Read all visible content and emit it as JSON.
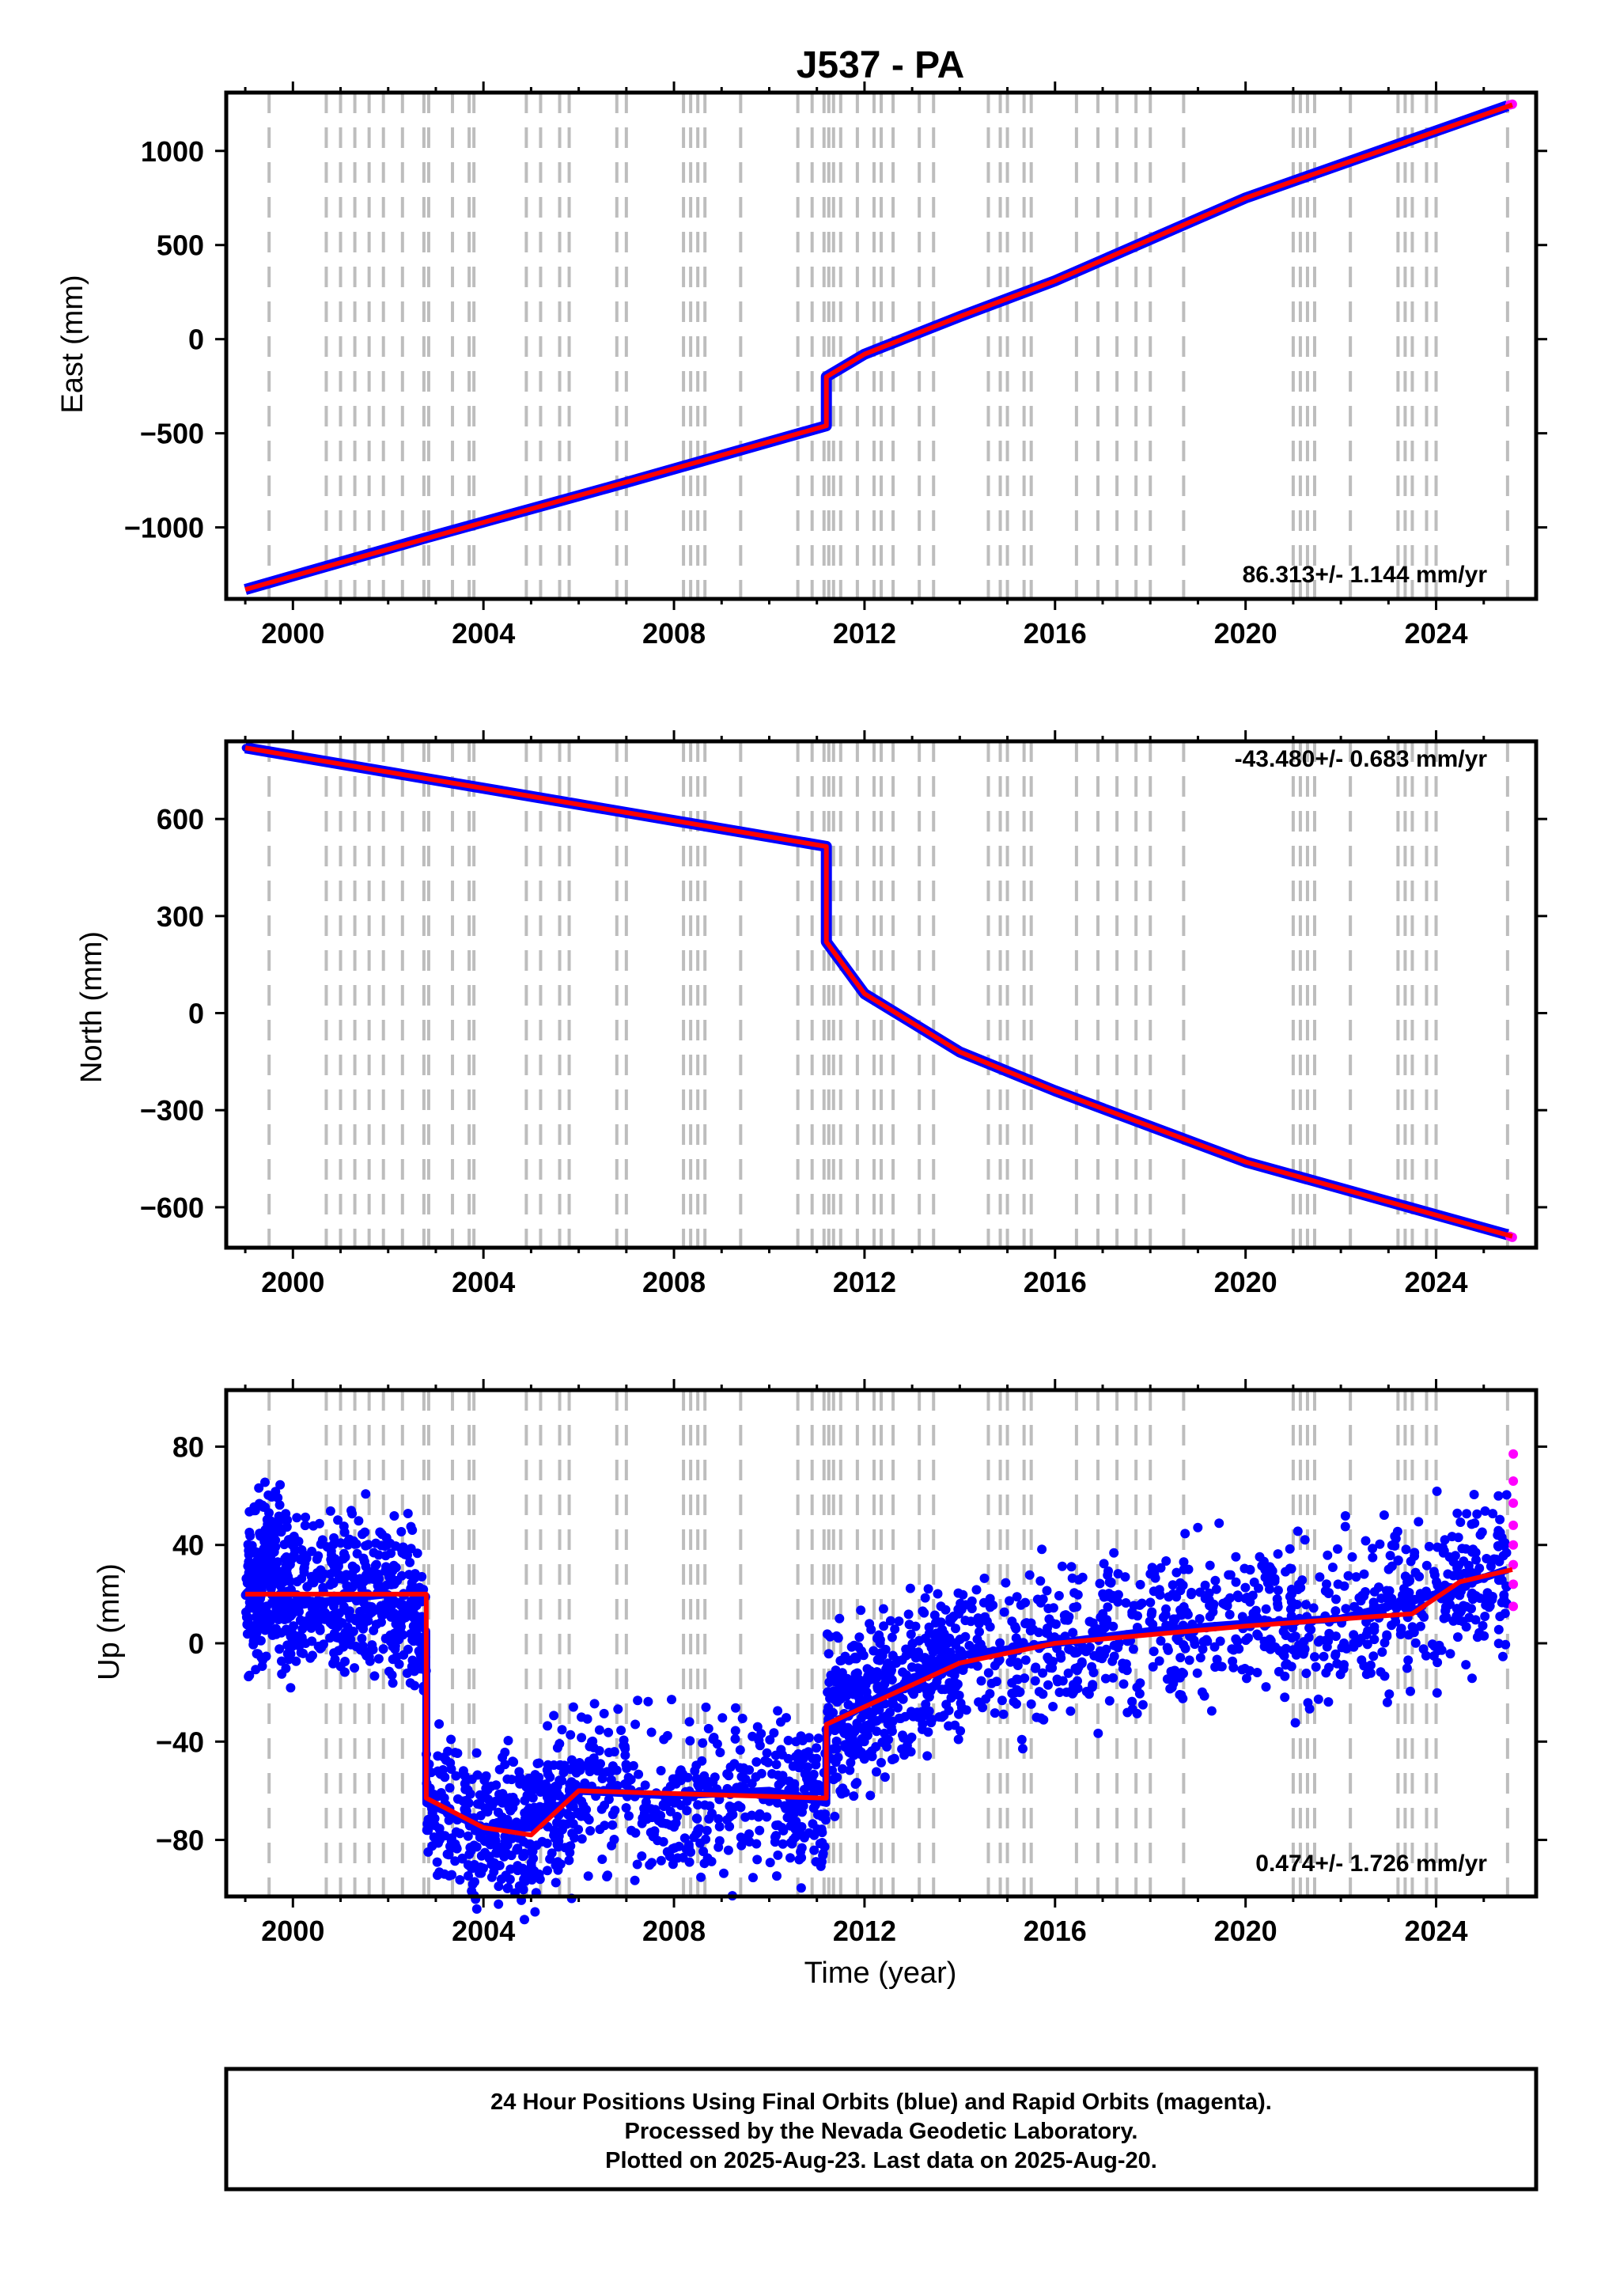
{
  "title": "J537 - PA",
  "xlabel": "Time (year)",
  "footer": {
    "line1": "24 Hour Positions Using Final Orbits (blue) and Rapid Orbits (magenta).",
    "line2": "Processed by the Nevada Geodetic Laboratory.",
    "line3": "Plotted on 2025-Aug-23. Last data on 2025-Aug-20."
  },
  "colors": {
    "final_orbits": "#0000ff",
    "rapid_orbits": "#ff00ff",
    "model": "#ff0000",
    "event_lines": "#bdbdbd"
  },
  "chart_data": [
    {
      "type": "scatter",
      "id": "east",
      "ylabel": "East (mm)",
      "rate_label": "86.313+/- 1.144 mm/yr",
      "xlim": [
        1998.6,
        2026.1
      ],
      "ylim": [
        -1380,
        1310
      ],
      "x_ticks": [
        2000,
        2004,
        2008,
        2012,
        2016,
        2020,
        2024
      ],
      "y_ticks": [
        -1000,
        -500,
        0,
        500,
        1000
      ],
      "grid": false,
      "series": [
        {
          "name": "Final Orbits",
          "color": "#0000ff",
          "points": [
            [
              1999.0,
              -1330
            ],
            [
              2002.8,
              -1055
            ],
            [
              2006.6,
              -790
            ],
            [
              2011.2,
              -460
            ],
            [
              2011.2,
              -200
            ],
            [
              2012.0,
              -80
            ],
            [
              2014.0,
              120
            ],
            [
              2016.0,
              310
            ],
            [
              2020.0,
              750
            ],
            [
              2025.5,
              1240
            ]
          ]
        },
        {
          "name": "Rapid Orbits",
          "color": "#ff00ff",
          "points": [
            [
              2025.55,
              1245
            ],
            [
              2025.6,
              1248
            ]
          ]
        },
        {
          "name": "Model",
          "color": "#ff0000",
          "points": [
            [
              1999.0,
              -1330
            ],
            [
              2011.2,
              -460
            ],
            [
              2011.2,
              -200
            ],
            [
              2012.0,
              -80
            ],
            [
              2014.0,
              120
            ],
            [
              2016.0,
              310
            ],
            [
              2020.0,
              750
            ],
            [
              2025.6,
              1245
            ]
          ]
        }
      ]
    },
    {
      "type": "scatter",
      "id": "north",
      "ylabel": "North (mm)",
      "rate_label": "-43.480+/- 0.683 mm/yr",
      "xlim": [
        1998.6,
        2026.1
      ],
      "ylim": [
        -725,
        840
      ],
      "x_ticks": [
        2000,
        2004,
        2008,
        2012,
        2016,
        2020,
        2024
      ],
      "y_ticks": [
        -600,
        -300,
        0,
        300,
        600
      ],
      "grid": false,
      "series": [
        {
          "name": "Final Orbits",
          "color": "#0000ff",
          "points": [
            [
              1999.0,
              820
            ],
            [
              2003.0,
              720
            ],
            [
              2007.0,
              620
            ],
            [
              2011.2,
              515
            ],
            [
              2011.2,
              220
            ],
            [
              2012.0,
              60
            ],
            [
              2014.0,
              -120
            ],
            [
              2016.0,
              -240
            ],
            [
              2020.0,
              -460
            ],
            [
              2025.5,
              -685
            ]
          ]
        },
        {
          "name": "Rapid Orbits",
          "color": "#ff00ff",
          "points": [
            [
              2025.55,
              -690
            ],
            [
              2025.6,
              -693
            ]
          ]
        },
        {
          "name": "Model",
          "color": "#ff0000",
          "points": [
            [
              1999.0,
              820
            ],
            [
              2011.2,
              515
            ],
            [
              2011.2,
              220
            ],
            [
              2012.0,
              60
            ],
            [
              2014.0,
              -120
            ],
            [
              2016.0,
              -240
            ],
            [
              2020.0,
              -460
            ],
            [
              2025.6,
              -690
            ]
          ]
        }
      ]
    },
    {
      "type": "scatter",
      "id": "up",
      "ylabel": "Up (mm)",
      "rate_label": "0.474+/- 1.726 mm/yr",
      "xlim": [
        1998.6,
        2026.1
      ],
      "ylim": [
        -103,
        103
      ],
      "x_ticks": [
        2000,
        2004,
        2008,
        2012,
        2016,
        2020,
        2024
      ],
      "y_ticks": [
        -80,
        -40,
        0,
        40,
        80
      ],
      "grid": false,
      "series": [
        {
          "name": "Final Orbits",
          "color": "#0000ff",
          "points": [
            [
              1999.0,
              20
            ],
            [
              1999.5,
              30
            ],
            [
              2000.0,
              15
            ],
            [
              2001.0,
              18
            ],
            [
              2002.0,
              20
            ],
            [
              2002.8,
              5
            ],
            [
              2002.8,
              -65
            ],
            [
              2004.0,
              -75
            ],
            [
              2005.0,
              -75
            ],
            [
              2006.0,
              -60
            ],
            [
              2008.0,
              -62
            ],
            [
              2010.0,
              -60
            ],
            [
              2011.2,
              -65
            ],
            [
              2011.2,
              -35
            ],
            [
              2012.0,
              -25
            ],
            [
              2013.0,
              -15
            ],
            [
              2014.0,
              -5
            ],
            [
              2016.0,
              0
            ],
            [
              2018.0,
              5
            ],
            [
              2020.0,
              8
            ],
            [
              2022.0,
              10
            ],
            [
              2024.0,
              20
            ],
            [
              2025.5,
              30
            ]
          ]
        },
        {
          "name": "Rapid Orbits",
          "color": "#ff00ff",
          "points": [
            [
              2025.62,
              77
            ],
            [
              2025.62,
              66
            ],
            [
              2025.62,
              57
            ],
            [
              2025.62,
              48
            ],
            [
              2025.62,
              40
            ],
            [
              2025.62,
              32
            ],
            [
              2025.62,
              24
            ],
            [
              2025.62,
              15
            ]
          ]
        },
        {
          "name": "Model",
          "color": "#ff0000",
          "points": [
            [
              1999.0,
              20
            ],
            [
              2002.8,
              20
            ],
            [
              2002.8,
              -63
            ],
            [
              2004.0,
              -75
            ],
            [
              2005.0,
              -78
            ],
            [
              2006.0,
              -60
            ],
            [
              2011.2,
              -63
            ],
            [
              2011.2,
              -33
            ],
            [
              2014.0,
              -8
            ],
            [
              2016.0,
              0
            ],
            [
              2020.0,
              7
            ],
            [
              2023.5,
              12
            ],
            [
              2024.5,
              25
            ],
            [
              2025.6,
              30
            ]
          ]
        }
      ]
    }
  ],
  "event_lines": [
    1999.5,
    2000.7,
    2001.0,
    2001.3,
    2001.6,
    2001.9,
    2002.3,
    2002.75,
    2002.85,
    2003.35,
    2003.7,
    2003.8,
    2004.9,
    2005.2,
    2005.6,
    2005.8,
    2006.8,
    2007.0,
    2008.2,
    2008.35,
    2008.5,
    2008.65,
    2009.4,
    2010.6,
    2010.9,
    2011.15,
    2011.25,
    2011.35,
    2011.5,
    2011.85,
    2012.2,
    2012.35,
    2012.6,
    2013.15,
    2013.45,
    2014.6,
    2014.85,
    2015.0,
    2015.35,
    2015.5,
    2016.45,
    2016.9,
    2017.3,
    2017.7,
    2018.0,
    2018.7,
    2021.0,
    2021.15,
    2021.3,
    2021.45,
    2022.2,
    2023.2,
    2023.35,
    2023.5,
    2023.8,
    2024.0,
    2025.5
  ]
}
